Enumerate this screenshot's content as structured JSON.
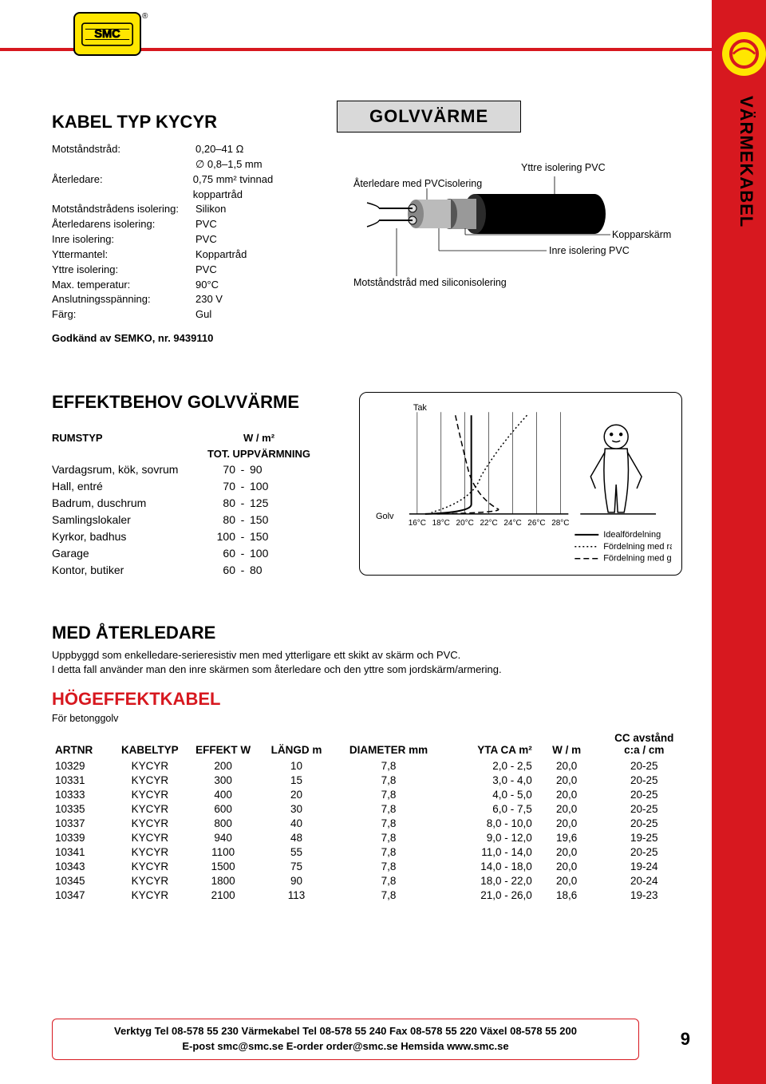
{
  "sidebar_tab": "VÄRMEKABEL",
  "header_box": "GOLVVÄRME",
  "product_title": "KABEL TYP KYCYR",
  "specs": [
    {
      "label": "Motståndstråd:",
      "value": "0,20–41 Ω"
    },
    {
      "label": "",
      "value": "∅ 0,8–1,5 mm"
    },
    {
      "label": "Återledare:",
      "value": "0,75 mm² tvinnad koppartråd"
    },
    {
      "label": "Motståndstrådens isolering:",
      "value": "Silikon"
    },
    {
      "label": "Återledarens isolering:",
      "value": "PVC"
    },
    {
      "label": "Inre isolering:",
      "value": "PVC"
    },
    {
      "label": "Yttermantel:",
      "value": "Koppartråd"
    },
    {
      "label": "Yttre isolering:",
      "value": "PVC"
    },
    {
      "label": "Max. temperatur:",
      "value": "90°C"
    },
    {
      "label": "Anslutningsspänning:",
      "value": "230 V"
    },
    {
      "label": "Färg:",
      "value": "Gul"
    }
  ],
  "approval": "Godkänd av SEMKO, nr. 9439110",
  "diagram": {
    "l1": "Yttre isolering PVC",
    "l2": "Återledare med PVCisolering",
    "l3": "Kopparskärm",
    "l4": "Inre isolering PVC",
    "l5": "Motståndstråd med siliconisolering"
  },
  "effekt_title": "EFFEKTBEHOV GOLVVÄRME",
  "effekt_header_unit": "W / m²",
  "effekt_header_c1": "RUMSTYP",
  "effekt_header_c2": "TOT. UPPVÄRMNING",
  "effekt_rows": [
    {
      "name": "Vardagsrum, kök, sovrum",
      "lo": "70",
      "hi": "90"
    },
    {
      "name": "Hall, entré",
      "lo": "70",
      "hi": "100"
    },
    {
      "name": "Badrum, duschrum",
      "lo": "80",
      "hi": "125"
    },
    {
      "name": "Samlingslokaler",
      "lo": "80",
      "hi": "150"
    },
    {
      "name": "Kyrkor, badhus",
      "lo": "100",
      "hi": "150"
    },
    {
      "name": "Garage",
      "lo": "60",
      "hi": "100"
    },
    {
      "name": "Kontor, butiker",
      "lo": "60",
      "hi": "80"
    }
  ],
  "chart": {
    "y_top": "Tak",
    "y_bottom": "Golv",
    "x_ticks": [
      "16°C",
      "18°C",
      "20°C",
      "22°C",
      "24°C",
      "26°C",
      "28°C"
    ],
    "legend": [
      {
        "style": "solid",
        "label": "Idealfördelning"
      },
      {
        "style": "dot",
        "label": "Fördelning med radiatorer"
      },
      {
        "style": "dash",
        "label": "Fördelning med golvvärme"
      }
    ]
  },
  "med_title": "MED ÅTERLEDARE",
  "med_desc1": "Uppbyggd som enkelledare-serieresistiv men med ytterligare ett skikt av skärm och PVC.",
  "med_desc2": "I detta fall använder man den inre skärmen som återledare och den yttre som jordskärm/armering.",
  "hog_title": "HÖGEFFEKTKABEL",
  "hog_sub": "För betonggolv",
  "table_headers": {
    "artnr": "ARTNR",
    "kabeltyp": "KABELTYP",
    "effekt": "EFFEKT W",
    "langd": "LÄNGD m",
    "diameter": "DIAMETER mm",
    "yta": "YTA CA m²",
    "wm": "W / m",
    "cc1": "CC avstånd",
    "cc2": "c:a / cm"
  },
  "table_rows": [
    [
      "10329",
      "KYCYR",
      "200",
      "10",
      "7,8",
      "2,0 -  2,5",
      "20,0",
      "20-25"
    ],
    [
      "10331",
      "KYCYR",
      "300",
      "15",
      "7,8",
      "3,0 -  4,0",
      "20,0",
      "20-25"
    ],
    [
      "10333",
      "KYCYR",
      "400",
      "20",
      "7,8",
      "4,0 -  5,0",
      "20,0",
      "20-25"
    ],
    [
      "10335",
      "KYCYR",
      "600",
      "30",
      "7,8",
      "6,0 -  7,5",
      "20,0",
      "20-25"
    ],
    [
      "10337",
      "KYCYR",
      "800",
      "40",
      "7,8",
      "8,0 - 10,0",
      "20,0",
      "20-25"
    ],
    [
      "10339",
      "KYCYR",
      "940",
      "48",
      "7,8",
      "9,0 - 12,0",
      "19,6",
      "19-25"
    ],
    [
      "10341",
      "KYCYR",
      "1100",
      "55",
      "7,8",
      "11,0 - 14,0",
      "20,0",
      "20-25"
    ],
    [
      "10343",
      "KYCYR",
      "1500",
      "75",
      "7,8",
      "14,0 - 18,0",
      "20,0",
      "19-24"
    ],
    [
      "10345",
      "KYCYR",
      "1800",
      "90",
      "7,8",
      "18,0 - 22,0",
      "20,0",
      "20-24"
    ],
    [
      "10347",
      "KYCYR",
      "2100",
      "113",
      "7,8",
      "21,0 - 26,0",
      "18,6",
      "19-23"
    ]
  ],
  "footer_line1": "Verktyg Tel 08-578 55 230  Värmekabel Tel 08-578 55 240  Fax 08-578 55 220  Växel 08-578 55 200",
  "footer_line2": "E-post smc@smc.se  E-order order@smc.se  Hemsida www.smc.se",
  "page_number": "9",
  "colors": {
    "brand_red": "#d7181f",
    "brand_yellow": "#ffe600",
    "box_gray": "#d9d9d9",
    "text": "#000000"
  }
}
